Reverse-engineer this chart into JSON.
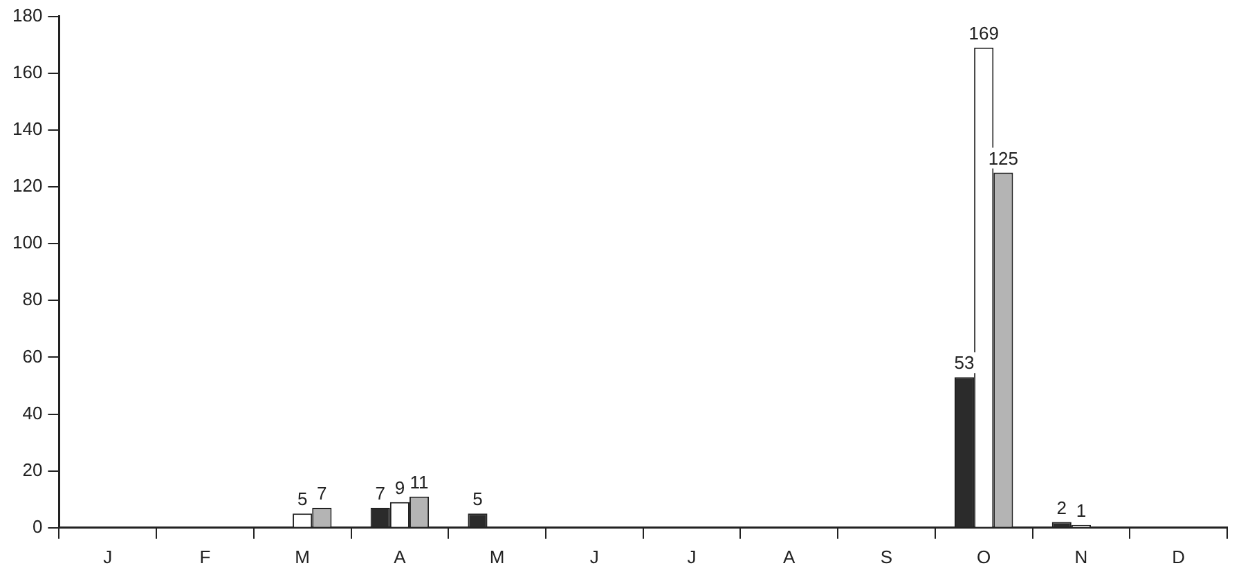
{
  "chart_data": {
    "type": "bar",
    "categories": [
      "J",
      "F",
      "M",
      "A",
      "M",
      "J",
      "J",
      "A",
      "S",
      "O",
      "N",
      "D"
    ],
    "series": [
      {
        "color": "#2b2b2b",
        "values": [
          null,
          null,
          null,
          7,
          5,
          null,
          null,
          null,
          null,
          53,
          2,
          null
        ]
      },
      {
        "color": "#ffffff",
        "values": [
          null,
          null,
          5,
          9,
          null,
          null,
          null,
          null,
          null,
          169,
          1,
          null
        ]
      },
      {
        "color": "#b4b4b4",
        "values": [
          null,
          null,
          7,
          11,
          null,
          null,
          null,
          null,
          null,
          125,
          null,
          null
        ]
      }
    ],
    "ylim": [
      0,
      180
    ],
    "yticks": [
      0,
      20,
      40,
      60,
      80,
      100,
      120,
      140,
      160,
      180
    ],
    "grid": false,
    "legend": false,
    "data_labels": true
  }
}
